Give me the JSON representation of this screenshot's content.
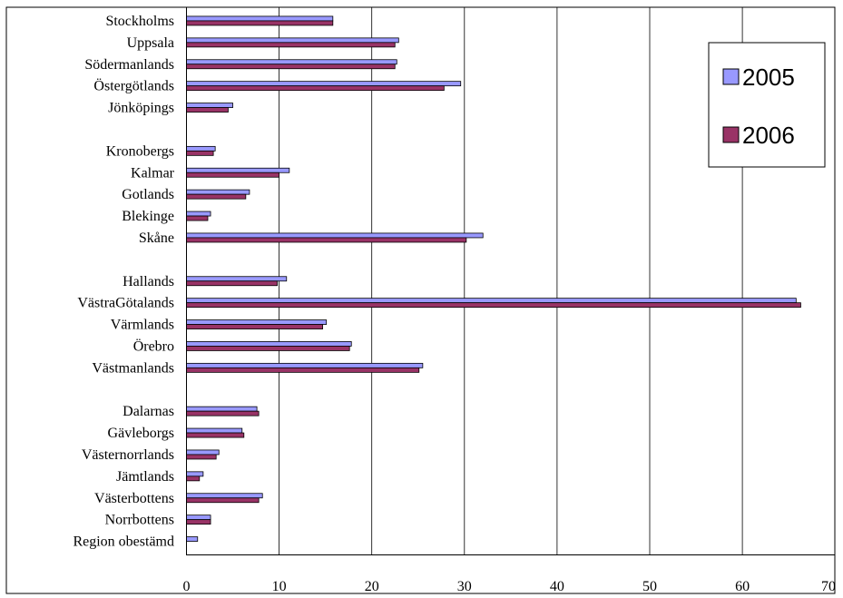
{
  "chart_data": {
    "type": "bar",
    "orientation": "horizontal",
    "title": "",
    "xlabel": "",
    "ylabel": "",
    "xlim": [
      0,
      70
    ],
    "ticks": [
      "0",
      "10",
      "20",
      "30",
      "40",
      "50",
      "60",
      "70"
    ],
    "grid": "vertical",
    "legend": "top-right",
    "rows": [
      {
        "label": "Stockholms",
        "v2005": 15.8,
        "v2006": 15.8
      },
      {
        "label": "Uppsala",
        "v2005": 22.9,
        "v2006": 22.5
      },
      {
        "label": "Södermanlands",
        "v2005": 22.7,
        "v2006": 22.5
      },
      {
        "label": "Östergötlands",
        "v2005": 29.6,
        "v2006": 27.8
      },
      {
        "label": "Jönköpings",
        "v2005": 5.0,
        "v2006": 4.5
      },
      {
        "label": "",
        "gap": true
      },
      {
        "label": "Kronobergs",
        "v2005": 3.1,
        "v2006": 2.9
      },
      {
        "label": "Kalmar",
        "v2005": 11.1,
        "v2006": 10.0
      },
      {
        "label": "Gotlands",
        "v2005": 6.8,
        "v2006": 6.4
      },
      {
        "label": "Blekinge",
        "v2005": 2.6,
        "v2006": 2.3
      },
      {
        "label": "Skåne",
        "v2005": 32.0,
        "v2006": 30.2
      },
      {
        "label": "",
        "gap": true
      },
      {
        "label": "Hallands",
        "v2005": 10.8,
        "v2006": 9.8
      },
      {
        "label": "VästraGötalands",
        "v2005": 65.8,
        "v2006": 66.3
      },
      {
        "label": "Värmlands",
        "v2005": 15.1,
        "v2006": 14.7
      },
      {
        "label": "Örebro",
        "v2005": 17.8,
        "v2006": 17.6
      },
      {
        "label": "Västmanlands",
        "v2005": 25.5,
        "v2006": 25.1
      },
      {
        "label": "",
        "gap": true
      },
      {
        "label": "Dalarnas",
        "v2005": 7.6,
        "v2006": 7.8
      },
      {
        "label": "Gävleborgs",
        "v2005": 6.0,
        "v2006": 6.2
      },
      {
        "label": "Västernorrlands",
        "v2005": 3.5,
        "v2006": 3.2
      },
      {
        "label": "Jämtlands",
        "v2005": 1.8,
        "v2006": 1.4
      },
      {
        "label": "Västerbottens",
        "v2005": 8.2,
        "v2006": 7.8
      },
      {
        "label": "Norrbottens",
        "v2005": 2.6,
        "v2006": 2.6
      },
      {
        "label": "Region obestämd",
        "v2005": 1.2,
        "v2006": 0
      }
    ],
    "series": [
      {
        "name": "2005",
        "key": "v2005",
        "color": "#9999ff"
      },
      {
        "name": "2006",
        "key": "v2006",
        "color": "#993366"
      }
    ]
  }
}
